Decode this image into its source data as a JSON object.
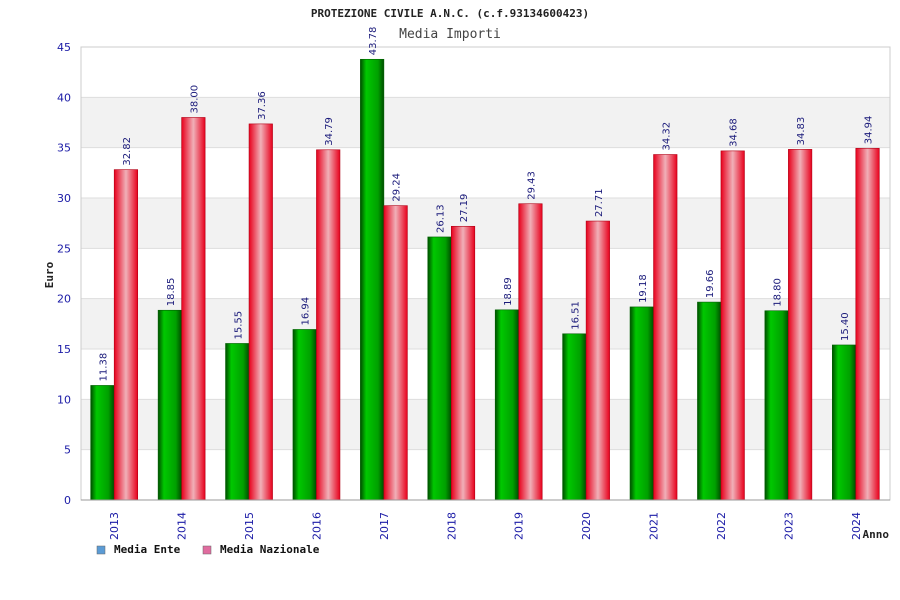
{
  "chart_data": {
    "type": "bar",
    "title": "PROTEZIONE CIVILE A.N.C. (c.f.93134600423)",
    "subtitle": "Media Importi",
    "xlabel": "Anno",
    "ylabel": "Euro",
    "ylim": [
      0,
      45
    ],
    "yticks": [
      "0",
      "5",
      "10",
      "15",
      "20",
      "25",
      "30",
      "35",
      "40",
      "45"
    ],
    "grid": true,
    "legend_position": "bottom-left",
    "categories": [
      "2013",
      "2014",
      "2015",
      "2016",
      "2017",
      "2018",
      "2019",
      "2020",
      "2021",
      "2022",
      "2023",
      "2024"
    ],
    "series": [
      {
        "name": "Media Ente",
        "color": "#00b400",
        "legend_color": "#5b9bd5",
        "values": [
          11.38,
          18.85,
          15.55,
          16.94,
          43.78,
          26.13,
          18.89,
          16.51,
          19.18,
          19.66,
          18.8,
          15.4
        ],
        "labels": [
          "11.38",
          "18.85",
          "15.55",
          "16.94",
          "43.78",
          "26.13",
          "18.89",
          "16.51",
          "19.18",
          "19.66",
          "18.80",
          "15.40"
        ]
      },
      {
        "name": "Media Nazionale",
        "color": "#e8001c",
        "legend_color": "#e06c9f",
        "values": [
          32.82,
          38.0,
          37.36,
          34.79,
          29.24,
          27.19,
          29.43,
          27.71,
          34.32,
          34.68,
          34.83,
          34.94
        ],
        "labels": [
          "32.82",
          "38.00",
          "37.36",
          "34.79",
          "29.24",
          "27.19",
          "29.43",
          "27.71",
          "34.32",
          "34.68",
          "34.83",
          "34.94"
        ]
      }
    ]
  }
}
